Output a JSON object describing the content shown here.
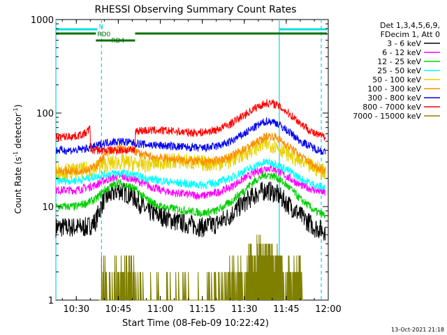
{
  "chart_data": {
    "type": "line",
    "title": "RHESSI Observing Summary Count Rates",
    "xlabel": "Start Time (08-Feb-09 10:22:42)",
    "ylabel": "Count Rate (s",
    "ylabel_sup": "-1",
    "ylabel_tail": " detector",
    "ylabel_sup2": "-1",
    "ylabel_end": ")",
    "yscale": "log",
    "ylim": [
      1,
      1000
    ],
    "xlim": [
      "10:22:42",
      "12:00:00"
    ],
    "xticks": [
      "10:30",
      "10:45",
      "11:00",
      "11:15",
      "11:30",
      "11:45",
      "12:00"
    ],
    "yticks": [
      "1",
      "10",
      "100",
      "1000"
    ],
    "legend_placement": "right",
    "legend_header": [
      "Det 1,3,4,5,6,9,",
      "FDecim 1, Att 0"
    ],
    "timestamp": "13-Oct-2021 21:18",
    "vertical_markers": [
      "10:22:42",
      "11:42:30"
    ],
    "dashed_markers": [
      "10:39:00",
      "11:57:30"
    ],
    "flags": [
      {
        "label": "N",
        "color": "#00e0e0",
        "segments": [
          [
            "10:22:42",
            "10:37:30"
          ],
          [
            "11:42:30",
            "11:59:30"
          ]
        ]
      },
      {
        "label": "RD0",
        "color": "#007000",
        "segments": [
          [
            "10:22:42",
            "10:37:00"
          ],
          [
            "10:51:00",
            "11:59:30"
          ]
        ]
      },
      {
        "label": "RD4",
        "color": "#007000",
        "segments": [
          [
            "10:37:00",
            "10:51:00"
          ]
        ]
      }
    ],
    "series": [
      {
        "name": "3 - 6 keV",
        "color": "#000000",
        "times": [
          "10:22:42",
          "10:30",
          "10:34",
          "10:37",
          "10:40",
          "10:45",
          "10:50",
          "10:55",
          "11:00",
          "11:05",
          "11:10",
          "11:15",
          "11:20",
          "11:25",
          "11:30",
          "11:35",
          "11:38",
          "11:41",
          "11:45",
          "11:50",
          "11:55",
          "11:59"
        ],
        "values": [
          6,
          6,
          6,
          7,
          12,
          15,
          13,
          9,
          8,
          7,
          6.5,
          6,
          6.5,
          8,
          11,
          14,
          15,
          14,
          11,
          8,
          6,
          5.5
        ]
      },
      {
        "name": "6 - 12 keV",
        "color": "#ff00ff",
        "times": [
          "10:22:42",
          "10:30",
          "10:34",
          "10:37",
          "10:40",
          "10:45",
          "10:50",
          "10:55",
          "11:00",
          "11:05",
          "11:10",
          "11:15",
          "11:20",
          "11:25",
          "11:30",
          "11:35",
          "11:38",
          "11:41",
          "11:45",
          "11:50",
          "11:55",
          "11:59"
        ],
        "values": [
          15,
          15,
          16,
          17,
          19,
          21,
          20,
          17,
          15,
          14,
          13.5,
          13,
          14,
          16,
          20,
          24,
          26,
          25,
          21,
          17,
          15,
          14
        ]
      },
      {
        "name": "12 - 25 keV",
        "color": "#00d000",
        "times": [
          "10:22:42",
          "10:30",
          "10:34",
          "10:37",
          "10:40",
          "10:45",
          "10:50",
          "10:55",
          "11:00",
          "11:05",
          "11:10",
          "11:15",
          "11:20",
          "11:25",
          "11:30",
          "11:35",
          "11:38",
          "11:41",
          "11:45",
          "11:50",
          "11:55",
          "11:59"
        ],
        "values": [
          10,
          10,
          11,
          12,
          15,
          18,
          16,
          12,
          10,
          9.5,
          9,
          8.5,
          9,
          11,
          15,
          20,
          22,
          21,
          17,
          12,
          9,
          8
        ]
      },
      {
        "name": "25 - 50 keV",
        "color": "#00ffff",
        "times": [
          "10:22:42",
          "10:30",
          "10:34",
          "10:37",
          "10:40",
          "10:45",
          "10:50",
          "10:55",
          "11:00",
          "11:05",
          "11:10",
          "11:15",
          "11:20",
          "11:25",
          "11:30",
          "11:35",
          "11:38",
          "11:41",
          "11:45",
          "11:50",
          "11:55",
          "11:59"
        ],
        "values": [
          19,
          19,
          20,
          21,
          22,
          23,
          22,
          20,
          19,
          18,
          17.5,
          17,
          18,
          20,
          24,
          28,
          30,
          29,
          25,
          20,
          17,
          16
        ]
      },
      {
        "name": "50 - 100 keV",
        "color": "#e8d000",
        "times": [
          "10:22:42",
          "10:30",
          "10:34",
          "10:37",
          "10:40",
          "10:45",
          "10:50",
          "10:55",
          "11:00",
          "11:05",
          "11:10",
          "11:15",
          "11:20",
          "11:25",
          "11:30",
          "11:35",
          "11:38",
          "11:41",
          "11:45",
          "11:50",
          "11:55",
          "11:59"
        ],
        "values": [
          24,
          24,
          25,
          26,
          28,
          30,
          29,
          28,
          30,
          31,
          30,
          29,
          29,
          31,
          37,
          44,
          47,
          45,
          38,
          30,
          26,
          24
        ]
      },
      {
        "name": "100 - 300 keV",
        "color": "#ff8c00",
        "times": [
          "10:22:42",
          "10:30",
          "10:34",
          "10:37",
          "10:40",
          "10:45",
          "10:50",
          "10:55",
          "11:00",
          "11:05",
          "11:10",
          "11:15",
          "11:20",
          "11:25",
          "11:30",
          "11:35",
          "11:38",
          "11:41",
          "11:45",
          "11:50",
          "11:55",
          "11:59"
        ],
        "values": [
          24,
          24,
          25,
          27,
          35,
          42,
          40,
          35,
          33,
          32,
          31,
          30,
          31,
          34,
          41,
          50,
          57,
          56,
          46,
          35,
          27,
          24
        ]
      },
      {
        "name": "300 - 800 keV",
        "color": "#0000ee",
        "times": [
          "10:22:42",
          "10:30",
          "10:34",
          "10:37",
          "10:40",
          "10:45",
          "10:50",
          "10:55",
          "11:00",
          "11:05",
          "11:10",
          "11:15",
          "11:20",
          "11:25",
          "11:30",
          "11:35",
          "11:38",
          "11:41",
          "11:45",
          "11:50",
          "11:55",
          "11:59"
        ],
        "values": [
          40,
          40,
          42,
          44,
          48,
          50,
          48,
          46,
          45,
          44,
          43,
          42,
          44,
          49,
          60,
          74,
          82,
          80,
          66,
          50,
          42,
          38
        ]
      },
      {
        "name": "800 - 7000 keV",
        "color": "#ff0000",
        "times": [
          "10:22:42",
          "10:30",
          "10:33",
          "10:35",
          "10:35.1",
          "10:45",
          "10:51",
          "10:51.1",
          "11:00",
          "11:05",
          "11:10",
          "11:15",
          "11:20",
          "11:25",
          "11:30",
          "11:35",
          "11:38",
          "11:41",
          "11:45",
          "11:50",
          "11:55",
          "11:59"
        ],
        "values": [
          55,
          57,
          60,
          68,
          40,
          40,
          40,
          65,
          65,
          64,
          62,
          62,
          66,
          76,
          95,
          118,
          128,
          125,
          104,
          78,
          60,
          55
        ]
      },
      {
        "name": "7000 - 15000 keV",
        "color": "#808000",
        "times": [
          "10:38",
          "10:40",
          "10:45",
          "10:50",
          "10:56",
          "11:23",
          "11:26",
          "11:30",
          "11:33",
          "11:36",
          "11:39",
          "11:42",
          "11:45",
          "11:49",
          "11:51"
        ],
        "values": [
          1,
          2,
          2,
          2,
          1,
          1,
          2,
          2,
          3,
          4,
          4,
          3,
          2,
          2,
          1
        ]
      }
    ]
  }
}
